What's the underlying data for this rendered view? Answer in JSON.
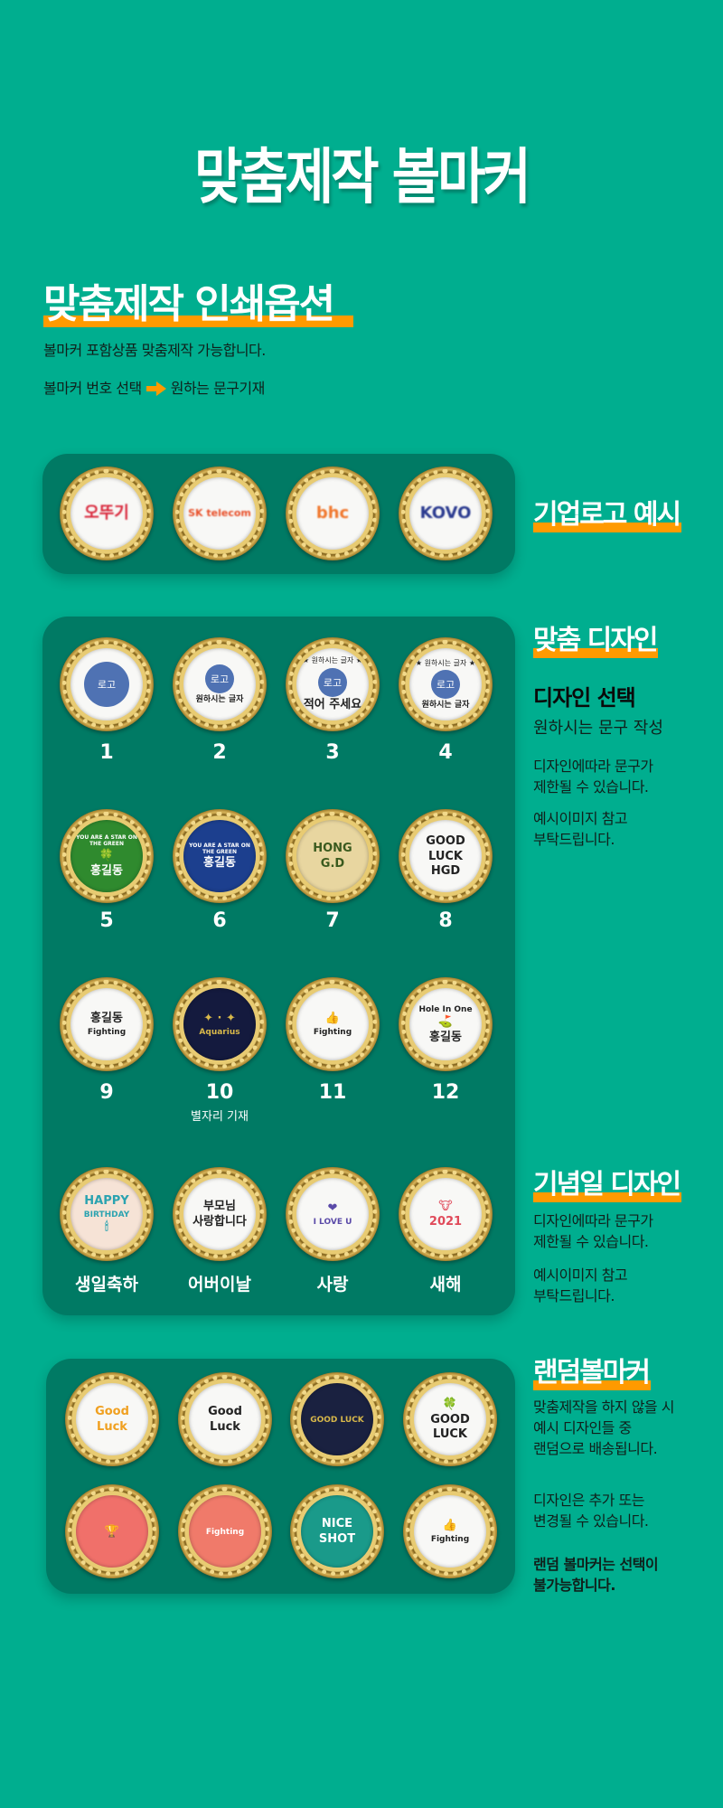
{
  "page_title": "맞춤제작 볼마커",
  "print_options": {
    "title": "맞춤제작 인쇄옵션",
    "line1": "볼마커 포함상품 맞춤제작 가능합니다.",
    "line2_a": "볼마커 번호 선택",
    "arrow_icon": "arrow-right-icon",
    "line2_b": "원하는 문구기재",
    "accent_color": "#ff9a00"
  },
  "corporate": {
    "heading": "기업로고 예시",
    "markers": [
      {
        "logo": "오뚜기",
        "bg": "#f8f8f6",
        "fg": "#d8263a"
      },
      {
        "logo": "SK telecom",
        "bg": "#f8f8f6",
        "fg": "#e8502a"
      },
      {
        "logo": "bhc",
        "bg": "#f8f8f6",
        "fg": "#f0782e"
      },
      {
        "logo": "KOVO",
        "bg": "#f8f8f6",
        "fg": "#2a3a8f"
      }
    ]
  },
  "custom": {
    "heading": "맞춤 디자인",
    "subheading": "디자인 선택",
    "desc": "원하시는 문구 작성",
    "note1": [
      "디자인에따라 문구가",
      "제한될 수 있습니다."
    ],
    "note2": [
      "예시이미지 참고",
      "부탁드립니다."
    ],
    "markers": [
      {
        "number": "1",
        "bg": "#f8f8f6",
        "fg": "#222",
        "logo": "로고",
        "lines": []
      },
      {
        "number": "2",
        "bg": "#f8f8f6",
        "fg": "#222",
        "logo": "로고",
        "lines": [
          "원하시는 글자"
        ]
      },
      {
        "number": "3",
        "bg": "#f8f8f6",
        "fg": "#222",
        "logo": "로고",
        "top": "★ 원하시는 글자 ★",
        "lines": [
          "적어 주세요"
        ]
      },
      {
        "number": "4",
        "bg": "#f8f8f6",
        "fg": "#222",
        "logo": "로고",
        "top": "★ 원하시는 글자 ★",
        "lines": [
          "원하시는 글자"
        ]
      },
      {
        "number": "5",
        "bg": "#2f8a2e",
        "fg": "#fff",
        "lines": [
          "YOU ARE A STAR ON THE GREEN",
          "🍀",
          "홍길동"
        ]
      },
      {
        "number": "6",
        "bg": "#1c3f8e",
        "fg": "#fff",
        "lines": [
          "YOU ARE A STAR ON THE GREEN",
          "홍길동"
        ]
      },
      {
        "number": "7",
        "bg": "#e8d6a0",
        "fg": "#3a5a1e",
        "lines": [
          "HONG",
          "G.D"
        ]
      },
      {
        "number": "8",
        "bg": "#f8f8f6",
        "fg": "#222",
        "lines": [
          "GOOD",
          "LUCK",
          "HGD"
        ]
      },
      {
        "number": "9",
        "bg": "#f8f8f6",
        "fg": "#222",
        "lines": [
          "홍길동",
          "Fighting"
        ]
      },
      {
        "number": "10",
        "sub": "별자리 기재",
        "bg": "#141a3e",
        "fg": "#d8b84a",
        "lines": [
          "✦ · ✦",
          "Aquarius"
        ]
      },
      {
        "number": "11",
        "bg": "#f8f8f6",
        "fg": "#222",
        "lines": [
          "👍",
          "Fighting"
        ]
      },
      {
        "number": "12",
        "bg": "#f8f8f6",
        "fg": "#222",
        "lines": [
          "Hole In One",
          "⛳",
          "홍길동"
        ]
      }
    ]
  },
  "anniversary": {
    "heading": "기념일 디자인",
    "note1": [
      "디자인에따라 문구가",
      "제한될 수 있습니다."
    ],
    "note2": [
      "예시이미지 참고",
      "부탁드립니다."
    ],
    "markers": [
      {
        "label": "생일축하",
        "bg": "#f6e3d6",
        "fg": "#2ba3b0",
        "lines": [
          "HAPPY",
          "BIRTHDAY",
          "🕯"
        ]
      },
      {
        "label": "어버이날",
        "bg": "#f8f8f6",
        "fg": "#222",
        "lines": [
          "부모님",
          "사랑합니다"
        ]
      },
      {
        "label": "사랑",
        "bg": "#f8f8f6",
        "fg": "#5a4aa8",
        "lines": [
          "❤",
          "I LOVE U"
        ]
      },
      {
        "label": "새해",
        "bg": "#f8f8f6",
        "fg": "#e04a5a",
        "lines": [
          "🐮",
          "2021"
        ]
      }
    ]
  },
  "random": {
    "heading": "랜덤볼마커",
    "note1": [
      "맞춤제작을 하지 않을 시",
      "예시 디자인들 중",
      "랜덤으로 배송됩니다."
    ],
    "note2": [
      "디자인은 추가 또는",
      "변경될 수 있습니다."
    ],
    "note3": [
      "랜덤 볼마커는 선택이",
      "불가능합니다."
    ],
    "markers": [
      {
        "bg": "#f8f8f6",
        "fg": "#f0a020",
        "lines": [
          "Good",
          "Luck"
        ]
      },
      {
        "bg": "#f8f8f6",
        "fg": "#222",
        "lines": [
          "Good",
          "Luck"
        ]
      },
      {
        "bg": "#1a2140",
        "fg": "#d8b84a",
        "lines": [
          "GOOD LUCK"
        ]
      },
      {
        "bg": "#f8f8f6",
        "fg": "#222",
        "lines": [
          "🍀",
          "GOOD",
          "LUCK"
        ]
      },
      {
        "bg": "#f0706a",
        "fg": "#ffd24a",
        "lines": [
          "🏆"
        ]
      },
      {
        "bg": "#f07a6a",
        "fg": "#fff",
        "lines": [
          "Fighting"
        ]
      },
      {
        "bg": "#1a9a8a",
        "fg": "#fff",
        "lines": [
          "NICE",
          "SHOT"
        ]
      },
      {
        "bg": "#f8f8f6",
        "fg": "#222",
        "lines": [
          "👍",
          "Fighting"
        ]
      }
    ]
  }
}
